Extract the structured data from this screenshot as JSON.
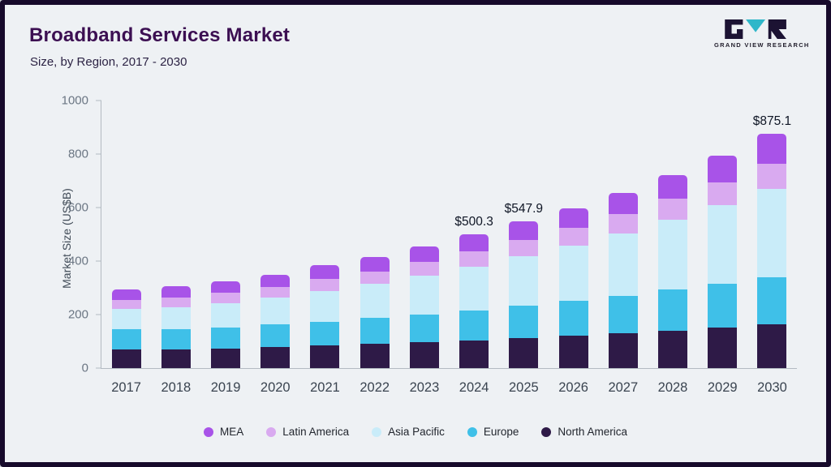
{
  "header": {
    "title": "Broadband Services Market",
    "subtitle": "Size, by Region, 2017 - 2030"
  },
  "logo": {
    "text": "GRAND VIEW RESEARCH",
    "dark_color": "#1c1333",
    "teal_color": "#2fb7c9"
  },
  "chart_data": {
    "type": "bar",
    "stacked": true,
    "title": "Broadband Services Market Size, by Region, 2017 - 2030",
    "ylabel": "Market Size (US$B)",
    "xlabel": "",
    "ylim": [
      0,
      1000
    ],
    "yticks": [
      0,
      200,
      400,
      600,
      800,
      1000
    ],
    "grid": false,
    "legend_position": "bottom",
    "categories": [
      "2017",
      "2018",
      "2019",
      "2020",
      "2021",
      "2022",
      "2023",
      "2024",
      "2025",
      "2026",
      "2027",
      "2028",
      "2029",
      "2030"
    ],
    "series": [
      {
        "name": "North America",
        "color": "#2e1a47",
        "values": [
          70,
          70,
          73,
          78,
          84,
          90,
          96,
          104,
          112,
          121,
          130,
          140,
          152,
          165
        ]
      },
      {
        "name": "Europe",
        "color": "#3fc0e8",
        "values": [
          75,
          76,
          80,
          85,
          90,
          97,
          105,
          111,
          120,
          130,
          141,
          153,
          163,
          175
        ]
      },
      {
        "name": "Asia Pacific",
        "color": "#c9ecf9",
        "values": [
          75,
          82,
          90,
          100,
          115,
          128,
          145,
          165,
          185,
          207,
          233,
          262,
          295,
          330
        ]
      },
      {
        "name": "Latin America",
        "color": "#d9aaf0",
        "values": [
          35,
          36,
          38,
          40,
          44,
          46,
          50,
          55,
          61,
          66,
          72,
          78,
          85,
          95
        ]
      },
      {
        "name": "MEA",
        "color": "#a853e8",
        "values": [
          40,
          41,
          44,
          47,
          52,
          54,
          59,
          65.3,
          69.9,
          73,
          79,
          87,
          100,
          110.1
        ]
      }
    ],
    "totals": [
      295,
      305,
      325,
      350,
      385,
      415,
      455,
      500.3,
      547.9,
      597,
      655,
      720,
      795,
      875.1
    ],
    "annotations": [
      {
        "category": "2024",
        "label": "$500.3"
      },
      {
        "category": "2025",
        "label": "$547.9"
      },
      {
        "category": "2030",
        "label": "$875.1"
      }
    ],
    "legend_order": [
      "MEA",
      "Latin America",
      "Asia Pacific",
      "Europe",
      "North America"
    ]
  }
}
